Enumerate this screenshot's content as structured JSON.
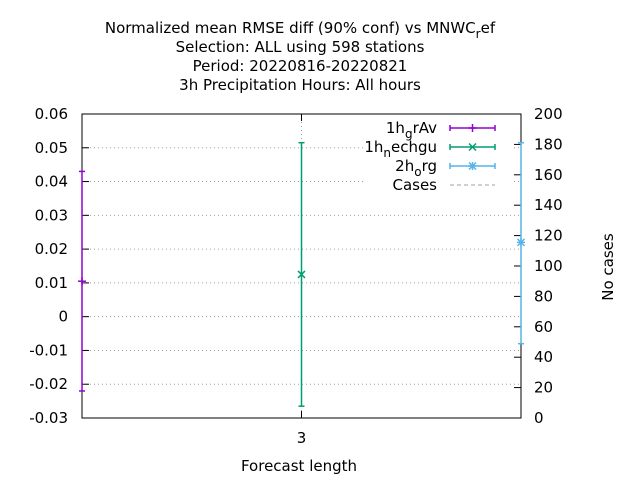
{
  "chart_data": {
    "type": "scatter",
    "title_lines": [
      "Normalized mean RMSE diff (90% conf) vs MNWC_ref",
      "Selection: ALL using   598 stations",
      "Period: 20220816-20220821",
      "3h Precipitation   Hours:  All hours"
    ],
    "xlabel": "Forecast length",
    "y2label": "No cases",
    "x_ticks": [
      3
    ],
    "y_ticks": [
      -0.03,
      -0.02,
      -0.01,
      0,
      0.01,
      0.02,
      0.03,
      0.04,
      0.05,
      0.06
    ],
    "y_tick_labels": [
      "-0.03",
      "-0.02",
      "-0.01",
      "0",
      "0.01",
      "0.02",
      "0.03",
      "0.04",
      "0.05",
      "0.06"
    ],
    "ylim": [
      -0.03,
      0.06
    ],
    "y2_ticks": [
      0,
      20,
      40,
      60,
      80,
      100,
      120,
      140,
      160,
      180,
      200
    ],
    "y2lim": [
      0,
      200
    ],
    "xlim": [
      2,
      4
    ],
    "grid": true,
    "legend_position": "top-right",
    "series": [
      {
        "name": "1h_grAv",
        "base": "1h",
        "sub": "g",
        "rest": "rAv",
        "color": "#9400d3",
        "marker": "plus",
        "points": [
          {
            "x": 2,
            "y": 0.0105,
            "low": -0.022,
            "high": 0.043
          }
        ]
      },
      {
        "name": "1h_nechgu",
        "base": "1h",
        "sub": "n",
        "rest": "echgu",
        "color": "#009e73",
        "marker": "cross",
        "points": [
          {
            "x": 3,
            "y": 0.0125,
            "low": -0.0265,
            "high": 0.0515
          }
        ]
      },
      {
        "name": "2h_org",
        "base": "2h",
        "sub": "o",
        "rest": "rg",
        "color": "#56b4e9",
        "marker": "star",
        "points": [
          {
            "x": 4,
            "y": 0.022,
            "low": -0.008,
            "high": 0.0515
          }
        ]
      },
      {
        "name": "Cases",
        "base": "Cases",
        "sub": "",
        "rest": "",
        "color": "#a0a0a0",
        "marker": "dashed-line",
        "points": []
      }
    ]
  }
}
